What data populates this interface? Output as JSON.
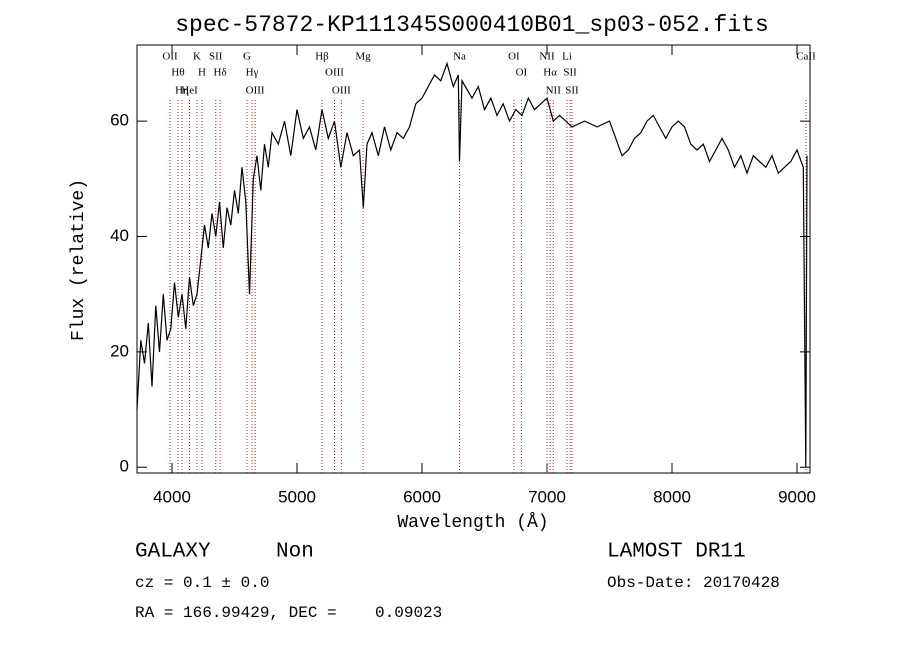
{
  "chart_data": {
    "type": "line",
    "title": "spec-57872-KP111345S000410B01_sp03-052.fits",
    "xlabel": "Wavelength (Å)",
    "ylabel": "Flux (relative)",
    "xlim": [
      3720,
      9104
    ],
    "ylim": [
      -1,
      73.2
    ],
    "xticks": [
      4000,
      5000,
      6000,
      7000,
      8000,
      9000
    ],
    "yticks": [
      0,
      20,
      40,
      60
    ],
    "color": "#000000",
    "line_color": "#b22222",
    "x": [
      3720,
      3750,
      3780,
      3810,
      3840,
      3870,
      3900,
      3930,
      3960,
      3990,
      4020,
      4050,
      4080,
      4110,
      4140,
      4170,
      4200,
      4230,
      4260,
      4290,
      4320,
      4350,
      4380,
      4410,
      4440,
      4470,
      4500,
      4530,
      4560,
      4590,
      4620,
      4650,
      4680,
      4710,
      4740,
      4770,
      4800,
      4850,
      4900,
      4950,
      5000,
      5050,
      5100,
      5150,
      5200,
      5250,
      5300,
      5350,
      5400,
      5450,
      5500,
      5530,
      5560,
      5600,
      5650,
      5700,
      5750,
      5800,
      5850,
      5900,
      5950,
      6000,
      6050,
      6100,
      6150,
      6200,
      6250,
      6290,
      6300,
      6320,
      6400,
      6450,
      6500,
      6550,
      6600,
      6650,
      6700,
      6750,
      6800,
      6850,
      6900,
      6950,
      7000,
      7050,
      7100,
      7150,
      7200,
      7300,
      7400,
      7500,
      7550,
      7600,
      7650,
      7700,
      7750,
      7800,
      7850,
      7900,
      7950,
      8000,
      8050,
      8100,
      8150,
      8200,
      8250,
      8300,
      8350,
      8400,
      8450,
      8500,
      8550,
      8600,
      8650,
      8700,
      8750,
      8800,
      8850,
      8900,
      8950,
      9000,
      9050,
      9070,
      9080
    ],
    "values": [
      10,
      22,
      18,
      25,
      14,
      28,
      20,
      30,
      22,
      24,
      32,
      26,
      30,
      24,
      33,
      28,
      30,
      36,
      42,
      38,
      44,
      40,
      46,
      38,
      45,
      42,
      48,
      44,
      52,
      46,
      30,
      50,
      54,
      48,
      56,
      52,
      58,
      56,
      60,
      54,
      62,
      57,
      59,
      55,
      62,
      57,
      60,
      52,
      58,
      54,
      55,
      45,
      56,
      58,
      54,
      59,
      55,
      58,
      57,
      59,
      63,
      64,
      66,
      68,
      67,
      70,
      66,
      68,
      53,
      67,
      64,
      66,
      62,
      64,
      61,
      63,
      60,
      62,
      61,
      64,
      62,
      63,
      64,
      60,
      61,
      60,
      59,
      60,
      59,
      60,
      57,
      54,
      55,
      57,
      58,
      60,
      61,
      59,
      57,
      59,
      60,
      59,
      56,
      55,
      56,
      53,
      55,
      57,
      55,
      52,
      54,
      51,
      54,
      53,
      52,
      54,
      51,
      52,
      53,
      55,
      52,
      0,
      54
    ],
    "lines": [
      {
        "label": "OII",
        "wavelength": 3984
      },
      {
        "label": "Hθ",
        "wavelength": 4048
      },
      {
        "label": "Hη",
        "wavelength": 4080
      },
      {
        "label": "HeI",
        "wavelength": 4140
      },
      {
        "label": "K",
        "wavelength": 4200
      },
      {
        "label": "H",
        "wavelength": 4240
      },
      {
        "label": "SII",
        "wavelength": 4350
      },
      {
        "label": "Hδ",
        "wavelength": 4385
      },
      {
        "label": "G",
        "wavelength": 4600
      },
      {
        "label": "Hγ",
        "wavelength": 4640
      },
      {
        "label": "OIII",
        "wavelength": 4665
      },
      {
        "label": "Hβ",
        "wavelength": 5200
      },
      {
        "label": "OIII",
        "wavelength": 5300
      },
      {
        "label": "OIII",
        "wavelength": 5355
      },
      {
        "label": "Mg",
        "wavelength": 5528
      },
      {
        "label": "Na",
        "wavelength": 6300
      },
      {
        "label": "OI",
        "wavelength": 6735
      },
      {
        "label": "OI",
        "wavelength": 6795
      },
      {
        "label": "NII",
        "wavelength": 7000
      },
      {
        "label": "Hα",
        "wavelength": 7025
      },
      {
        "label": "NII",
        "wavelength": 7050
      },
      {
        "label": "Li",
        "wavelength": 7160
      },
      {
        "label": "SII",
        "wavelength": 7185
      },
      {
        "label": "SII",
        "wavelength": 7200
      },
      {
        "label": "CaII",
        "wavelength": 9072
      }
    ],
    "info": {
      "class": "GALAXY",
      "subclass": "Non",
      "survey": "LAMOST DR11",
      "cz": "cz = 0.1 ± 0.0",
      "obs_date": "Obs-Date: 20170428",
      "coords": "RA = 166.99429, DEC =    0.09023"
    }
  }
}
